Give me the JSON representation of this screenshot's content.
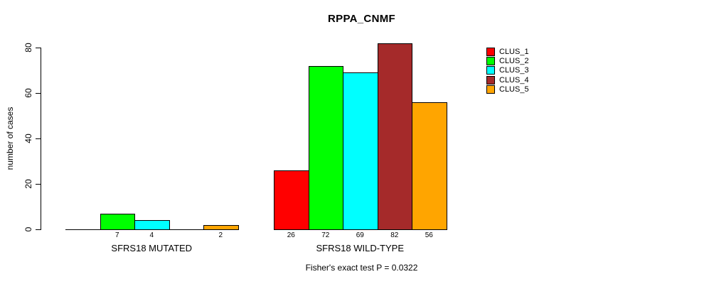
{
  "chart_data": {
    "type": "bar",
    "title": "RPPA_CNMF",
    "ylabel": "number of cases",
    "ylim": [
      0,
      80
    ],
    "yticks": [
      0,
      20,
      40,
      60,
      80
    ],
    "categories": [
      "SFRS18 MUTATED",
      "SFRS18 WILD-TYPE"
    ],
    "series": [
      {
        "name": "CLUS_1",
        "color": "#FF0000",
        "values": [
          0,
          26
        ]
      },
      {
        "name": "CLUS_2",
        "color": "#00FF00",
        "values": [
          7,
          72
        ]
      },
      {
        "name": "CLUS_3",
        "color": "#00FFFF",
        "values": [
          4,
          69
        ]
      },
      {
        "name": "CLUS_4",
        "color": "#A52A2A",
        "values": [
          0,
          82
        ]
      },
      {
        "name": "CLUS_5",
        "color": "#FFA500",
        "values": [
          2,
          56
        ]
      }
    ],
    "bar_value_labels": {
      "SFRS18 MUTATED": [
        null,
        7,
        4,
        null,
        2
      ],
      "SFRS18 WILD-TYPE": [
        26,
        72,
        69,
        82,
        56
      ]
    },
    "annotation": "Fisher's exact test P = 0.0322",
    "legend": {
      "position": "right",
      "entries": [
        "CLUS_1",
        "CLUS_2",
        "CLUS_3",
        "CLUS_4",
        "CLUS_5"
      ]
    },
    "grid": false
  }
}
